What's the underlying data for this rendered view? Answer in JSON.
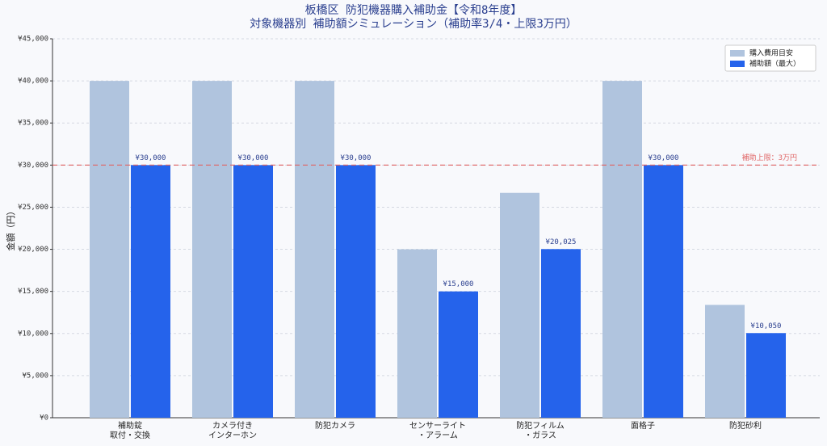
{
  "chart_data": {
    "type": "bar",
    "title": "板橋区 防犯機器購入補助金【令和8年度】",
    "subtitle": "対象機器別 補助額シミュレーション（補助率3/4・上限3万円）",
    "y_label": "金額（円）",
    "categories": [
      "補助錠\n取付・交換",
      "カメラ付き\nインターホン",
      "防犯カメラ",
      "センサーライト\n・アラーム",
      "防犯フィルム\n・ガラス",
      "面格子",
      "防犯砂利"
    ],
    "series": [
      {
        "name": "購入費用目安",
        "color": "#b0c4de",
        "values": [
          40000,
          40000,
          40000,
          20000,
          26700,
          40000,
          13400
        ]
      },
      {
        "name": "補助額（最大）",
        "color": "#2563eb",
        "values": [
          30000,
          30000,
          30000,
          15000,
          20025,
          30000,
          10050
        ],
        "value_labels": [
          "¥30,000",
          "¥30,000",
          "¥30,000",
          "¥15,000",
          "¥20,025",
          "¥30,000",
          "¥10,050"
        ]
      }
    ],
    "reference_line": {
      "value": 30000,
      "label": "補助上限：3万円",
      "color": "#e06666"
    },
    "ylim": [
      0,
      45000
    ],
    "yticks": [
      {
        "value": 0,
        "label": "¥0"
      },
      {
        "value": 5000,
        "label": "¥5,000"
      },
      {
        "value": 10000,
        "label": "¥10,000"
      },
      {
        "value": 15000,
        "label": "¥15,000"
      },
      {
        "value": 20000,
        "label": "¥20,000"
      },
      {
        "value": 25000,
        "label": "¥25,000"
      },
      {
        "value": 30000,
        "label": "¥30,000"
      },
      {
        "value": 35000,
        "label": "¥35,000"
      },
      {
        "value": 40000,
        "label": "¥40,000"
      },
      {
        "value": 45000,
        "label": "¥45,000"
      }
    ],
    "grid": true,
    "legend": "upper right"
  }
}
